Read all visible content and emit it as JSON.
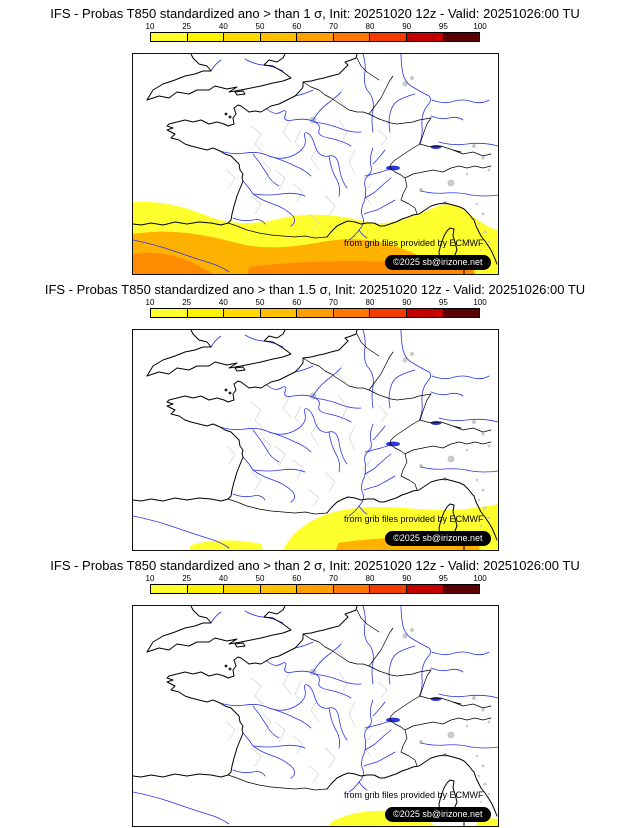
{
  "page": {
    "background": "#ffffff"
  },
  "colorbar": {
    "ticks": [
      "10",
      "25",
      "40",
      "50",
      "60",
      "70",
      "80",
      "90",
      "95",
      "100"
    ],
    "colors": [
      "#ffff2e",
      "#fff200",
      "#ffd900",
      "#ffbe00",
      "#ff9e00",
      "#ff7700",
      "#f53c00",
      "#c40000",
      "#5a0000"
    ]
  },
  "map_colors": {
    "yellow": "#ffff2e",
    "orange": "#ffb100",
    "orange-deep": "#ff8c00",
    "river": "#2b35e0",
    "dept": "#c9c9c9",
    "gray-area": "#c4c4c4"
  },
  "panels": [
    {
      "title": "IFS - Probas T850  standardized ano > than 1 σ, Init: 20251020 12z - Valid: 20251026:00 TU"
    },
    {
      "title": "IFS - Probas T850  standardized ano > than 1.5 σ, Init: 20251020 12z - Valid: 20251026:00 TU"
    },
    {
      "title": "IFS - Probas T850  standardized ano > than 2 σ, Init: 20251020 12z - Valid: 20251026:00 TU"
    }
  ],
  "annotations": {
    "credit": "from grib files provided by ECMWF",
    "copyright": "©2025 sb@irizone.net"
  }
}
